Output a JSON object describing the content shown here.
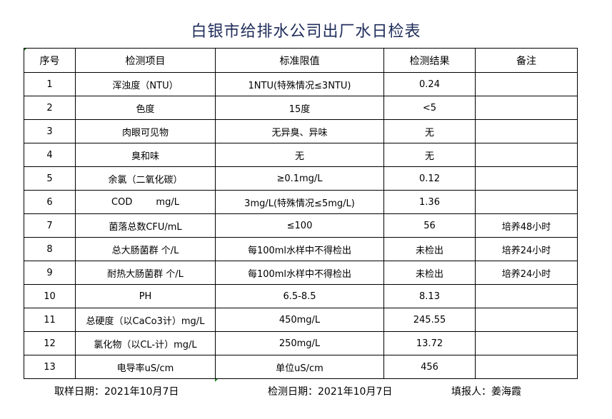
{
  "title": "白银市给排水公司出厂水日检表",
  "headers": [
    "序号",
    "检测项目",
    "标准限值",
    "检测结果",
    "备注"
  ],
  "rows": [
    [
      "1",
      "浑浊度（NTU）",
      "1NTU(特殊情况≤3NTU)",
      "0.24",
      ""
    ],
    [
      "2",
      "色度",
      "15度",
      "<5",
      ""
    ],
    [
      "3",
      "肉眼可见物",
      "无异臭、异味",
      "无",
      ""
    ],
    [
      "4",
      "臭和味",
      "无",
      "无",
      ""
    ],
    [
      "5",
      "余氯（二氧化碳）",
      "≥0.1mg/L",
      "0.12",
      ""
    ],
    [
      "6",
      "COD        mg/L",
      "3mg/L(特殊情况≤5mg/L)",
      "1.36",
      ""
    ],
    [
      "7",
      "菌落总数CFU/mL",
      "≤100",
      "56",
      "培养48小时"
    ],
    [
      "8",
      "总大肠菌群 个/L",
      "每100ml水样中不得检出",
      "未检出",
      "培养24小时"
    ],
    [
      "9",
      "耐热大肠菌群 个/L",
      "每100ml水样中不得检出",
      "未检出",
      "培养24小时"
    ],
    [
      "10",
      "PH",
      "6.5-8.5",
      "8.13",
      ""
    ],
    [
      "11",
      "总硬度（以CaCo3计）mg/L",
      "450mg/L",
      "245.55",
      ""
    ],
    [
      "12",
      "氯化物（以CL-计）mg/L",
      "250mg/L",
      "13.72",
      ""
    ],
    [
      "13",
      "电导率uS/cm",
      "单位uS/cm",
      "456",
      ""
    ]
  ],
  "footer": {
    "sample_date": "取样日期：2021年10月7日",
    "test_date": "检测日期：2021年10月7日",
    "filler": "填报人：姜海霞"
  }
}
